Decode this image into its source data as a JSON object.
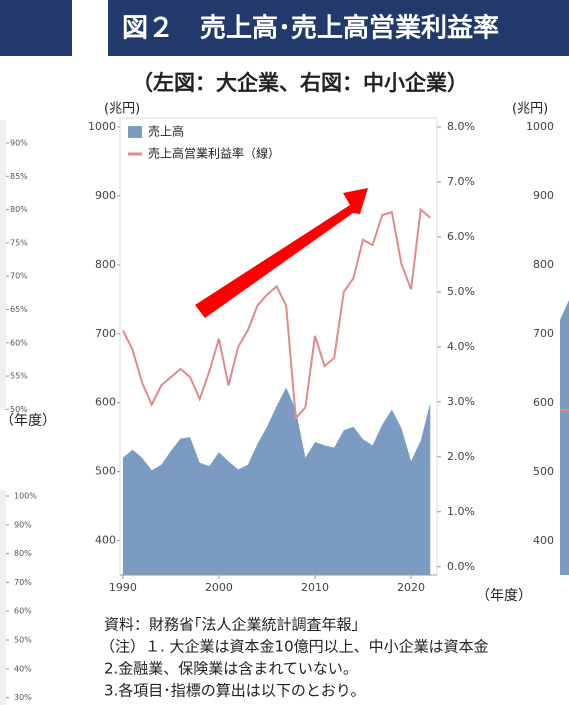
{
  "header": {
    "title": "図２　売上高･売上高営業利益率",
    "subtitle": "（左図：大企業、右図：中小企業）"
  },
  "chart_data": {
    "type": "area-line",
    "y_label": "(兆円)",
    "x_label": "（年度）",
    "x": [
      1990,
      1991,
      1992,
      1993,
      1994,
      1995,
      1996,
      1997,
      1998,
      1999,
      2000,
      2001,
      2002,
      2003,
      2004,
      2005,
      2006,
      2007,
      2008,
      2009,
      2010,
      2011,
      2012,
      2013,
      2014,
      2015,
      2016,
      2017,
      2018,
      2019,
      2020,
      2021,
      2022
    ],
    "xlim": [
      1989.7,
      2022.7
    ],
    "xticks": [
      1990,
      2000,
      2010,
      2020
    ],
    "ylim": [
      350,
      1000
    ],
    "yticks": [
      400,
      500,
      600,
      700,
      800,
      900,
      1000
    ],
    "y2lim": [
      -0.15,
      8
    ],
    "y2ticks": [
      {
        "value": 0,
        "label": "0.0%"
      },
      {
        "value": 1,
        "label": "1.0%"
      },
      {
        "value": 2,
        "label": "2.0%"
      },
      {
        "value": 3,
        "label": "3.0%"
      },
      {
        "value": 4,
        "label": "4.0%"
      },
      {
        "value": 5,
        "label": "5.0%"
      },
      {
        "value": 6,
        "label": "6.0%"
      },
      {
        "value": 7,
        "label": "7.0%"
      },
      {
        "value": 8,
        "label": "8.0%"
      }
    ],
    "series": [
      {
        "name": "売上高",
        "color": "#7b9bc2",
        "kind": "area",
        "values": [
          520,
          532,
          520,
          502,
          510,
          530,
          548,
          550,
          513,
          508,
          528,
          515,
          503,
          510,
          540,
          565,
          595,
          622,
          590,
          520,
          543,
          538,
          535,
          560,
          565,
          547,
          538,
          568,
          590,
          563,
          515,
          545,
          600
        ]
      },
      {
        "name": "売上高営業利益率（線）",
        "color": "#e08a8a",
        "kind": "line",
        "axis": "y2",
        "values": [
          4.3,
          3.95,
          3.35,
          2.95,
          3.3,
          3.45,
          3.6,
          3.45,
          3.05,
          3.55,
          4.15,
          3.3,
          4.0,
          4.3,
          4.75,
          4.95,
          5.1,
          4.75,
          2.7,
          2.9,
          4.2,
          3.65,
          3.8,
          5.0,
          5.25,
          5.95,
          5.85,
          6.4,
          6.45,
          5.5,
          5.05,
          6.5,
          6.35
        ]
      }
    ]
  },
  "side_panels": {
    "left_top_ticks": [
      "90%",
      "85%",
      "80%",
      "75%",
      "70%",
      "65%",
      "60%",
      "55%",
      "50%"
    ],
    "left_top_x_label": "（年度）",
    "left_bottom_ticks": [
      "100%",
      "90%",
      "80%",
      "70%",
      "60%",
      "50%",
      "40%",
      "30%"
    ],
    "right_unit": "(兆円)",
    "right_ticks": [
      "1000",
      "900",
      "800",
      "700",
      "600",
      "500",
      "400"
    ]
  },
  "notes": [
    "資料：財務省｢法人企業統計調査年報｣",
    "（注）１. 大企業は資本金10億円以上、中小企業は資本金",
    "2.金融業、保険業は含まれていない。",
    "3.各項目･指標の算出は以下のとおり。"
  ]
}
